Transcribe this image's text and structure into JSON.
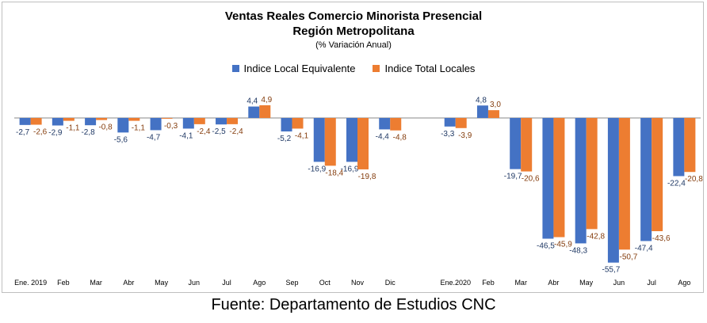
{
  "header": {
    "title": "Ventas Reales Comercio Minorista Presencial",
    "subtitle": "Región Metropolitana",
    "unit": "(% Variación Anual)"
  },
  "source": "Fuente: Departamento de Estudios CNC",
  "colors": {
    "local": "#4472C4",
    "total": "#ED7D31"
  },
  "chart_data": {
    "type": "bar",
    "title": "Ventas Reales Comercio Minorista Presencial",
    "subtitle": "Región Metropolitana",
    "ylabel": "(% Variación Anual)",
    "ylim": [
      -58,
      10
    ],
    "grid": false,
    "legend_position": "top",
    "categories": [
      "Ene. 2019",
      "Feb",
      "Mar",
      "Abr",
      "May",
      "Jun",
      "Jul",
      "Ago",
      "Sep",
      "Oct",
      "Nov",
      "Dic",
      "",
      "Ene.2020",
      "Feb",
      "Mar",
      "Abr",
      "May",
      "Jun",
      "Jul",
      "Ago"
    ],
    "series": [
      {
        "name": "Indice Local Equivalente",
        "values": [
          -2.7,
          -2.9,
          -2.8,
          -5.6,
          -4.7,
          -4.1,
          -2.5,
          4.4,
          -5.2,
          -16.9,
          -16.9,
          -4.4,
          null,
          -3.3,
          4.8,
          -19.7,
          -46.5,
          -48.3,
          -55.7,
          -47.4,
          -22.4
        ],
        "labels": [
          "-2,7",
          "-2,9",
          "-2,8",
          "-5,6",
          "-4,7",
          "-4,1",
          "-2,5",
          "4,4",
          "-5,2",
          "-16,9",
          "-16,9",
          "-4,4",
          "",
          "-3,3",
          "4,8",
          "-19,7",
          "-46,5",
          "-48,3",
          "-55,7",
          "-47,4",
          "-22,4"
        ]
      },
      {
        "name": "Indice Total Locales",
        "values": [
          -2.6,
          -1.1,
          -0.8,
          -1.1,
          -0.3,
          -2.4,
          -2.4,
          4.9,
          -4.1,
          -18.4,
          -19.8,
          -4.8,
          null,
          -3.9,
          3.0,
          -20.6,
          -45.9,
          -42.8,
          -50.7,
          -43.6,
          -20.8
        ],
        "labels": [
          "-2,6",
          "-1,1",
          "-0,8",
          "-1,1",
          "-0,3",
          "-2,4",
          "-2,4",
          "4,9",
          "-4,1",
          "-18,4",
          "-19,8",
          "-4,8",
          "",
          "-3,9",
          "3,0",
          "-20,6",
          "-45,9",
          "-42,8",
          "-50,7",
          "-43,6",
          "-20,8"
        ]
      }
    ]
  }
}
